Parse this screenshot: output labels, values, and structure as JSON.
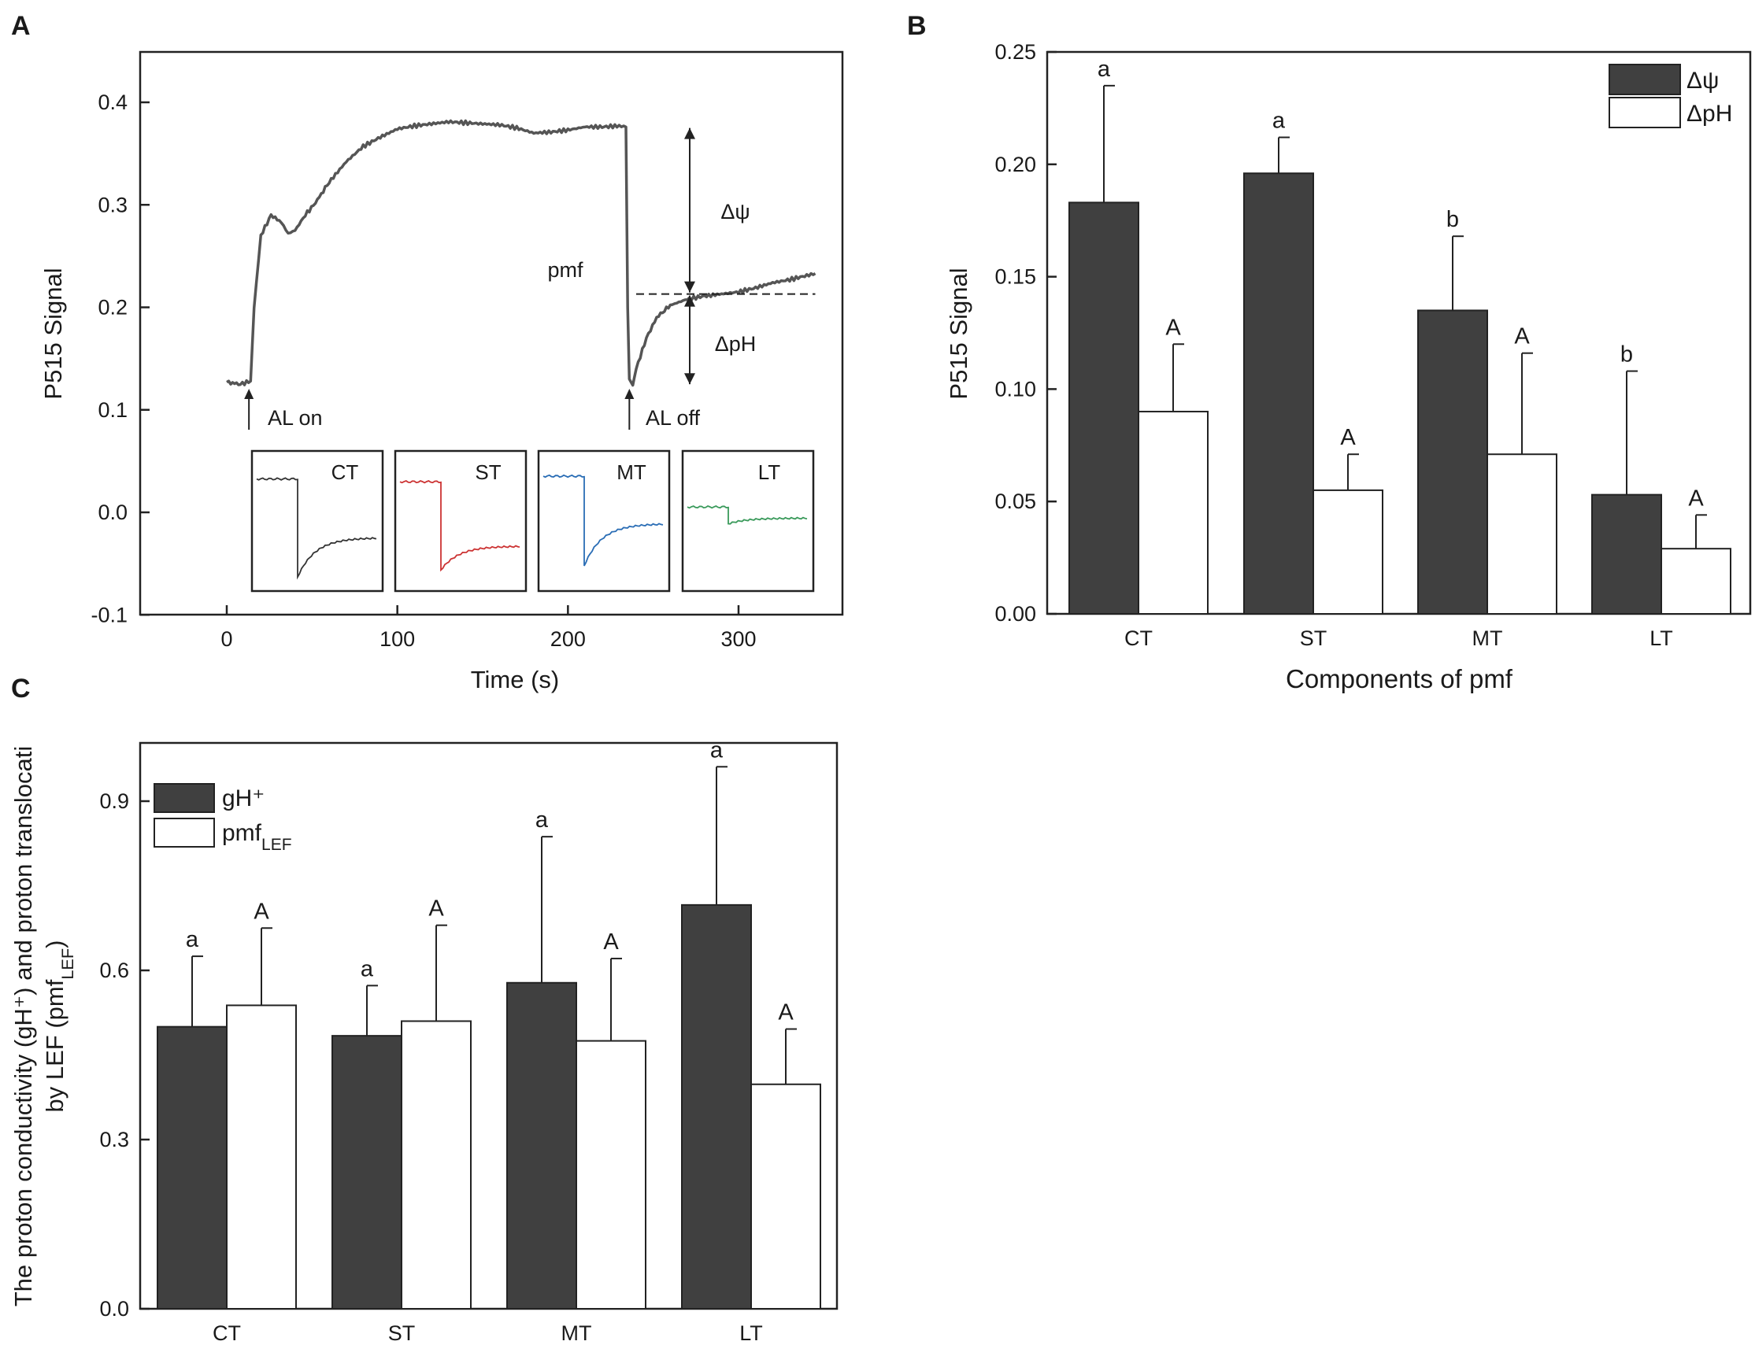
{
  "panels": {
    "a": {
      "letter": "A",
      "ylabel": "P515 Signal",
      "xlabel": "Time (s)",
      "xticks": [
        0,
        100,
        200,
        300
      ],
      "yticks": [
        -0.1,
        0.0,
        0.1,
        0.2,
        0.3,
        0.4
      ],
      "annotations": {
        "pmf": "pmf",
        "dpsi": "Δψ",
        "dph": "ΔpH",
        "al_on": "AL on",
        "al_off": "AL off"
      },
      "insets": [
        {
          "label": "CT",
          "color": "#333333"
        },
        {
          "label": "ST",
          "color": "#cc3333"
        },
        {
          "label": "MT",
          "color": "#2a6db5"
        },
        {
          "label": "LT",
          "color": "#3a9a5b"
        }
      ]
    },
    "b": {
      "letter": "B",
      "ylabel": "P515 Signal",
      "xlabel": "Components of pmf",
      "legend": [
        "Δψ",
        "ΔpH"
      ]
    },
    "c": {
      "letter": "C",
      "ylabel_line1": "The proton conductivity (gH⁺) and proton translocati",
      "ylabel_line2": "by LEF (pmfLEF)",
      "legend": [
        "gH⁺",
        "pmfLEF"
      ]
    }
  },
  "chart_data": [
    {
      "type": "line",
      "title": "",
      "xlabel": "Time (s)",
      "ylabel": "P515 Signal",
      "xlim": [
        -45,
        345
      ],
      "ylim": [
        -0.1,
        0.45
      ],
      "series": [
        {
          "name": "P515 trace",
          "x": [
            0,
            8,
            14,
            16,
            20,
            26,
            32,
            36,
            40,
            46,
            52,
            60,
            70,
            80,
            90,
            100,
            110,
            120,
            130,
            140,
            150,
            160,
            170,
            180,
            190,
            200,
            210,
            220,
            230,
            234,
            235,
            236,
            238,
            240,
            246,
            252,
            260,
            270,
            280,
            290,
            300,
            310,
            320,
            330,
            340,
            345
          ],
          "y": [
            0.127,
            0.125,
            0.128,
            0.2,
            0.27,
            0.29,
            0.283,
            0.272,
            0.275,
            0.29,
            0.302,
            0.322,
            0.342,
            0.357,
            0.366,
            0.374,
            0.377,
            0.379,
            0.381,
            0.38,
            0.379,
            0.378,
            0.375,
            0.37,
            0.371,
            0.373,
            0.376,
            0.376,
            0.377,
            0.376,
            0.2,
            0.13,
            0.124,
            0.14,
            0.17,
            0.19,
            0.202,
            0.208,
            0.211,
            0.213,
            0.215,
            0.219,
            0.224,
            0.227,
            0.231,
            0.233
          ]
        }
      ],
      "reference_line": {
        "y": 0.213,
        "x_range": [
          240,
          345
        ],
        "style": "dashed"
      }
    },
    {
      "type": "bar",
      "title": "",
      "xlabel": "Components of pmf",
      "ylabel": "P515 Signal",
      "ylim": [
        0,
        0.25
      ],
      "yticks": [
        0.0,
        0.05,
        0.1,
        0.15,
        0.2,
        0.25
      ],
      "categories": [
        "CT",
        "ST",
        "MT",
        "LT"
      ],
      "series": [
        {
          "name": "Δψ",
          "values": [
            0.183,
            0.196,
            0.135,
            0.053
          ],
          "errors": [
            0.052,
            0.016,
            0.033,
            0.055
          ],
          "letters": [
            "a",
            "a",
            "b",
            "b"
          ]
        },
        {
          "name": "ΔpH",
          "values": [
            0.09,
            0.055,
            0.071,
            0.029
          ],
          "errors": [
            0.03,
            0.016,
            0.045,
            0.015
          ],
          "letters": [
            "A",
            "A",
            "A",
            "A"
          ]
        }
      ]
    },
    {
      "type": "bar",
      "title": "",
      "xlabel": "",
      "ylabel": "The proton conductivity (gH⁺) and proton translocation by LEF (pmfLEF)",
      "ylim": [
        0,
        1.0
      ],
      "yticks": [
        0.0,
        0.3,
        0.6,
        0.9
      ],
      "categories": [
        "CT",
        "ST",
        "MT",
        "LT"
      ],
      "series": [
        {
          "name": "gH⁺",
          "values": [
            0.5,
            0.484,
            0.578,
            0.716
          ],
          "errors": [
            0.125,
            0.089,
            0.259,
            0.245
          ],
          "letters": [
            "a",
            "a",
            "a",
            "a"
          ]
        },
        {
          "name": "pmfLEF",
          "values": [
            0.538,
            0.51,
            0.475,
            0.398
          ],
          "errors": [
            0.137,
            0.17,
            0.146,
            0.098
          ],
          "letters": [
            "A",
            "A",
            "A",
            "A"
          ]
        }
      ]
    }
  ]
}
